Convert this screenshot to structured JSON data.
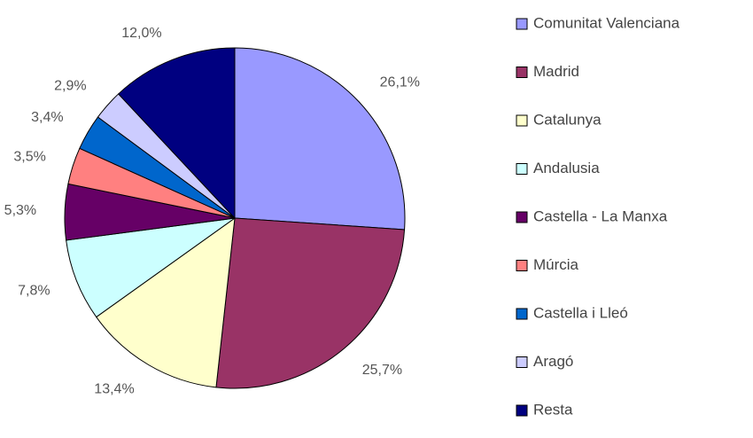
{
  "chart_data": {
    "type": "pie",
    "categories": [
      "Comunitat Valenciana",
      "Madrid",
      "Catalunya",
      "Andalusia",
      "Castella - La Manxa",
      "Múrcia",
      "Castella i Lleó",
      "Aragó",
      "Resta"
    ],
    "values": [
      26.1,
      25.7,
      13.4,
      7.8,
      5.3,
      3.5,
      3.4,
      2.9,
      12.0
    ],
    "value_labels": [
      "26,1%",
      "25,7%",
      "13,4%",
      "7,8%",
      "5,3%",
      "3,5%",
      "3,4%",
      "2,9%",
      "12,0%"
    ],
    "colors": [
      "#9999ff",
      "#993366",
      "#ffffcc",
      "#ccffff",
      "#660066",
      "#ff8080",
      "#0066cc",
      "#ccccff",
      "#000080"
    ],
    "legend": "right"
  }
}
